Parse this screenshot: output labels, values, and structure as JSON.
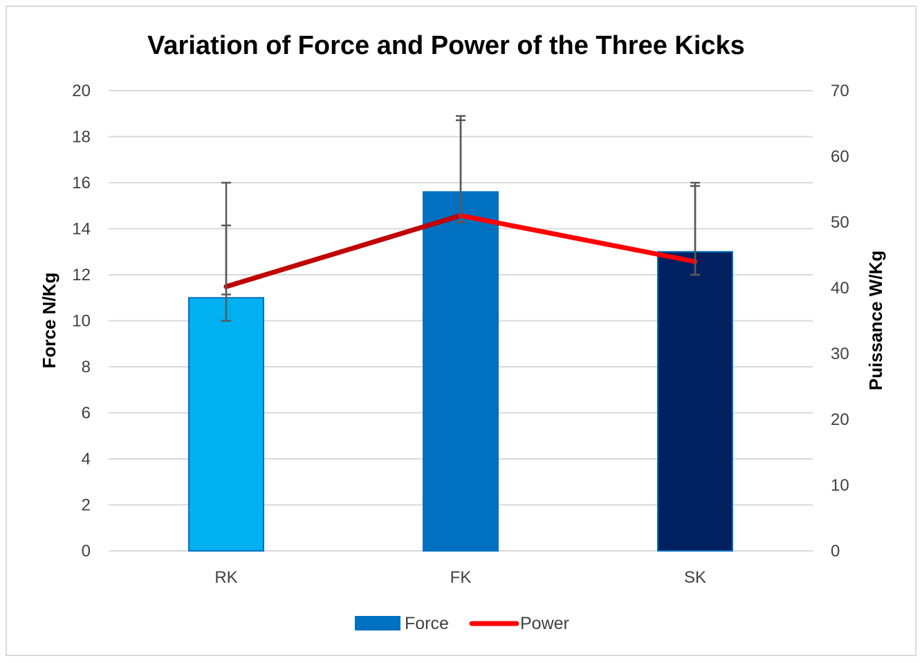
{
  "chart_data": {
    "type": "bar",
    "title": "Variation of Force and Power of the Three Kicks",
    "categories": [
      "RK",
      "FK",
      "SK"
    ],
    "ylabel": "Force N/Kg",
    "y2label": "Puissance W/Kg",
    "ylim": [
      0,
      20
    ],
    "y2lim": [
      0,
      70
    ],
    "yticks": [
      "0",
      "2",
      "4",
      "6",
      "8",
      "10",
      "12",
      "14",
      "16",
      "18",
      "20"
    ],
    "y2ticks": [
      "0",
      "10",
      "20",
      "30",
      "40",
      "50",
      "60",
      "70"
    ],
    "grid": true,
    "legend_position": "bottom",
    "series": [
      {
        "name": "Force",
        "kind": "bar",
        "axis": "left",
        "values": [
          11.0,
          15.6,
          13.0
        ],
        "error_low": [
          10.0,
          14.3,
          12.0
        ],
        "error_high": [
          16.0,
          18.9,
          16.0
        ],
        "bar_colors": [
          "#00b0f0",
          "#0070c0",
          "#002060"
        ],
        "legend_color": "#0070c0"
      },
      {
        "name": "Power",
        "kind": "line",
        "axis": "right",
        "values": [
          40.2,
          51.0,
          44.0
        ],
        "error_low": [
          39.0,
          50.0,
          42.0
        ],
        "error_high": [
          49.5,
          65.5,
          55.5
        ],
        "line_colors": [
          "#c00000",
          "#ff0000"
        ],
        "legend_color": "#ff0000"
      }
    ]
  }
}
